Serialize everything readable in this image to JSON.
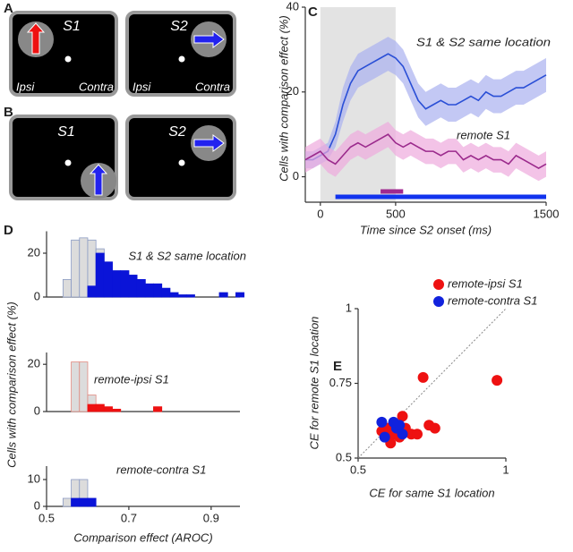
{
  "panels": {
    "A": {
      "label": "A",
      "left": {
        "stimulus": "S1",
        "ipsi": "Ipsi",
        "contra": "Contra"
      },
      "right": {
        "stimulus": "S2",
        "ipsi": "Ipsi",
        "contra": "Contra"
      }
    },
    "B": {
      "label": "B",
      "left": {
        "stimulus": "S1"
      },
      "right": {
        "stimulus": "S2"
      }
    },
    "C": {
      "label": "C"
    },
    "D": {
      "label": "D"
    },
    "E": {
      "label": "E"
    }
  },
  "chart_data": [
    {
      "type": "line",
      "xlabel": "Time since S2 onset (ms)",
      "ylabel": "Cells with comparison effect (%)",
      "xlim": [
        -100,
        1500
      ],
      "ylim": [
        -6,
        40
      ],
      "xticks": [
        0,
        500,
        1500
      ],
      "yticks": [
        0,
        20,
        40
      ],
      "shade": [
        0,
        500
      ],
      "shade_color": "#e3e3e3",
      "x": [
        -100,
        -50,
        0,
        50,
        100,
        150,
        200,
        250,
        300,
        350,
        400,
        450,
        500,
        550,
        600,
        650,
        700,
        750,
        800,
        850,
        900,
        950,
        1000,
        1050,
        1100,
        1150,
        1200,
        1250,
        1300,
        1350,
        1400,
        1450,
        1500
      ],
      "series": [
        {
          "color": "#2a4fd6",
          "band_color": "#aab0f0",
          "values": [
            4,
            4,
            5,
            6,
            10,
            17,
            22,
            25,
            26,
            27,
            28,
            29,
            28,
            26,
            22,
            18,
            16,
            17,
            18,
            17,
            17,
            18,
            19,
            18,
            20,
            19,
            19,
            20,
            21,
            21,
            22,
            23,
            24
          ],
          "error": [
            2,
            2,
            2,
            2,
            3,
            4,
            4,
            4,
            4,
            4,
            4,
            4,
            4,
            4,
            4,
            4,
            4,
            4,
            4,
            4,
            4,
            4,
            4,
            4,
            4,
            4,
            4,
            4,
            4,
            4,
            4,
            4,
            4
          ]
        },
        {
          "color": "#9b2a8c",
          "band_color": "#eeaadd",
          "values": [
            4,
            5,
            6,
            4,
            3,
            5,
            7,
            8,
            7,
            8,
            9,
            10,
            8,
            7,
            8,
            7,
            6,
            6,
            5,
            6,
            6,
            4,
            5,
            4,
            5,
            4,
            4,
            3,
            5,
            4,
            3,
            2,
            3
          ],
          "error": [
            3,
            3,
            3,
            3,
            3,
            3,
            3,
            3,
            3,
            3,
            3,
            3,
            3,
            3,
            3,
            3,
            3,
            3,
            3,
            3,
            3,
            3,
            3,
            3,
            3,
            3,
            3,
            3,
            3,
            3,
            3,
            3,
            3
          ]
        }
      ],
      "annotations": [
        "S1 & S2 same location",
        "remote S1"
      ],
      "significance_bars": [
        {
          "color": "#a02a90",
          "start": 400,
          "end": 550
        },
        {
          "color": "#1133ee",
          "start": 100,
          "end": 1500
        }
      ]
    },
    {
      "type": "histogram",
      "ylabel": "Cells with comparison effect (%)",
      "title": "S1 & S2 same location",
      "xlim": [
        0.5,
        0.97
      ],
      "ylim": [
        0,
        30
      ],
      "yticks": [
        0,
        20
      ],
      "bins": [
        0.54,
        0.56,
        0.58,
        0.6,
        0.62,
        0.64,
        0.66,
        0.68,
        0.7,
        0.72,
        0.74,
        0.76,
        0.78,
        0.8,
        0.82,
        0.84,
        0.86,
        0.88,
        0.9,
        0.92,
        0.94,
        0.96,
        0.98
      ],
      "series": [
        {
          "color": "#dcdcdc",
          "edgecolor": "#8b9bc4",
          "values": [
            8,
            26,
            27,
            26,
            22,
            16,
            12,
            12,
            10,
            8,
            6,
            6,
            4,
            2,
            1,
            1,
            0,
            0,
            0,
            2,
            0,
            2
          ]
        },
        {
          "color": "#0a14d8",
          "edgecolor": "#0a14d8",
          "values": [
            0,
            0,
            0,
            5,
            20,
            16,
            12,
            12,
            10,
            8,
            6,
            6,
            4,
            2,
            1,
            1,
            0,
            0,
            0,
            2,
            0,
            2
          ]
        }
      ]
    },
    {
      "type": "histogram",
      "title": "remote-ipsi S1",
      "xlim": [
        0.5,
        0.97
      ],
      "ylim": [
        0,
        25
      ],
      "yticks": [
        0,
        20
      ],
      "bins": [
        0.54,
        0.56,
        0.58,
        0.6,
        0.62,
        0.64,
        0.66,
        0.68,
        0.7,
        0.72,
        0.74,
        0.76,
        0.78,
        0.8,
        0.82,
        0.84,
        0.86,
        0.88,
        0.9,
        0.92,
        0.94,
        0.96,
        0.98
      ],
      "series": [
        {
          "color": "#dcdcdc",
          "edgecolor": "#e08a80",
          "values": [
            0,
            21,
            21,
            7,
            3,
            2,
            1,
            0,
            0,
            0,
            0,
            2,
            0,
            0,
            0,
            0,
            0,
            0,
            0,
            0,
            0,
            0
          ]
        },
        {
          "color": "#ee1111",
          "edgecolor": "#ee1111",
          "values": [
            0,
            0,
            0,
            3,
            3,
            2,
            1,
            0,
            0,
            0,
            0,
            2,
            0,
            0,
            0,
            0,
            0,
            0,
            0,
            0,
            0,
            0
          ]
        }
      ]
    },
    {
      "type": "histogram",
      "title": "remote-contra S1",
      "xlabel": "Comparison effect (AROC)",
      "xlim": [
        0.5,
        0.97
      ],
      "ylim": [
        0,
        15
      ],
      "yticks": [
        0,
        10
      ],
      "xticks": [
        0.5,
        0.7,
        0.9
      ],
      "bins": [
        0.54,
        0.56,
        0.58,
        0.6,
        0.62,
        0.64,
        0.66,
        0.68,
        0.7,
        0.72,
        0.74,
        0.76,
        0.78,
        0.8,
        0.82,
        0.84,
        0.86,
        0.88,
        0.9,
        0.92,
        0.94,
        0.96,
        0.98
      ],
      "series": [
        {
          "color": "#dcdcdc",
          "edgecolor": "#8b9bc4",
          "values": [
            3,
            10,
            10,
            3,
            0,
            0,
            0,
            0,
            0,
            0,
            0,
            0,
            0,
            0,
            0,
            0,
            0,
            0,
            0,
            0,
            0,
            0
          ]
        },
        {
          "color": "#0a14d8",
          "edgecolor": "#0a14d8",
          "values": [
            0,
            3,
            3,
            3,
            0,
            0,
            0,
            0,
            0,
            0,
            0,
            0,
            0,
            0,
            0,
            0,
            0,
            0,
            0,
            0,
            0,
            0
          ]
        }
      ]
    },
    {
      "type": "scatter",
      "xlabel": "CE for same S1 location",
      "ylabel": "CE for remote S1 location",
      "xlim": [
        0.5,
        1
      ],
      "ylim": [
        0.5,
        1
      ],
      "xticks": [
        0.5,
        1
      ],
      "yticks": [
        0.5,
        0.75,
        1
      ],
      "diagonal": true,
      "legend": "upper right",
      "series": [
        {
          "name": "remote-ipsi S1",
          "color": "#ee1111",
          "x": [
            0.6,
            0.62,
            0.64,
            0.65,
            0.66,
            0.68,
            0.7,
            0.72,
            0.74,
            0.76,
            0.97,
            0.61,
            0.58
          ],
          "values": [
            0.6,
            0.58,
            0.57,
            0.64,
            0.6,
            0.58,
            0.58,
            0.77,
            0.61,
            0.6,
            0.76,
            0.55,
            0.59
          ]
        },
        {
          "name": "remote-contra S1",
          "color": "#1122dd",
          "x": [
            0.58,
            0.63,
            0.64,
            0.65,
            0.59,
            0.62
          ],
          "values": [
            0.62,
            0.6,
            0.61,
            0.58,
            0.57,
            0.62
          ]
        }
      ]
    }
  ]
}
